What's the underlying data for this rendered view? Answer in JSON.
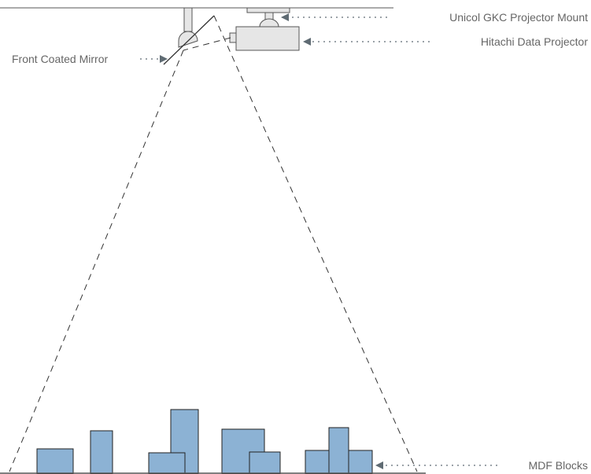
{
  "labels": {
    "mount": "Unicol GKC Projector Mount",
    "projector": "Hitachi Data Projector",
    "mirror": "Front Coated Mirror",
    "blocks": "MDF Blocks"
  },
  "colors": {
    "block_fill": "#8cb2d4",
    "block_stroke": "#222222",
    "fixture_fill": "#e6e6e6",
    "fixture_stroke": "#555555",
    "line": "#333333",
    "label_text": "#666666",
    "arrow": "#5f6b73"
  }
}
